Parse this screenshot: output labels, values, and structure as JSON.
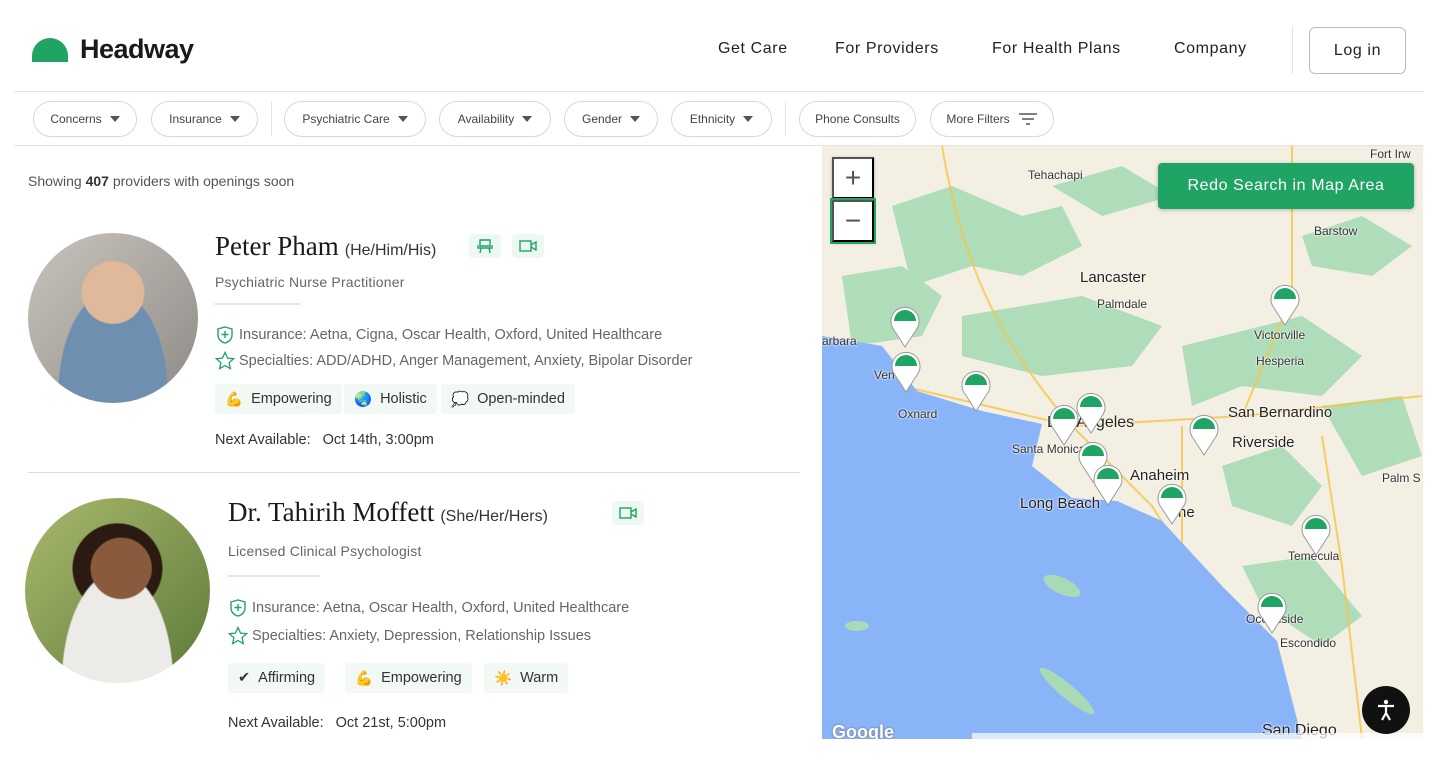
{
  "header": {
    "brand": "Headway",
    "nav": [
      "Get Care",
      "For Providers",
      "For Health Plans",
      "Company"
    ],
    "login": "Log in"
  },
  "filters": [
    "Concerns",
    "Insurance",
    "Psychiatric Care",
    "Availability",
    "Gender",
    "Ethnicity",
    "Phone Consults",
    "More Filters"
  ],
  "results": {
    "prefix": "Showing ",
    "count": "407",
    "suffix": " providers with openings soon"
  },
  "providers": [
    {
      "name": "Peter Pham",
      "pronouns": "(He/Him/His)",
      "modes": [
        "in-person-chair-icon",
        "video-icon"
      ],
      "role": "Psychiatric Nurse Practitioner",
      "insurance": "Insurance: Aetna, Cigna, Oscar Health, Oxford, United Healthcare",
      "specialties": "Specialties: ADD/ADHD, Anger Management, Anxiety, Bipolar Disorder",
      "tags": [
        {
          "emoji": "💪",
          "label": "Empowering"
        },
        {
          "emoji": "🌏",
          "label": "Holistic"
        },
        {
          "emoji": "💭",
          "label": "Open-minded"
        }
      ],
      "next_label": "Next Available:",
      "next_value": "Oct 14th, 3:00pm"
    },
    {
      "name": "Dr. Tahirih Moffett",
      "pronouns": "(She/Her/Hers)",
      "modes": [
        "video-icon"
      ],
      "role": "Licensed Clinical Psychologist",
      "insurance": "Insurance: Aetna, Oscar Health, Oxford, United Healthcare",
      "specialties": "Specialties: Anxiety, Depression, Relationship Issues",
      "tags": [
        {
          "emoji": "✔",
          "label": "Affirming"
        },
        {
          "emoji": "💪",
          "label": "Empowering"
        },
        {
          "emoji": "☀️",
          "label": "Warm"
        }
      ],
      "next_label": "Next Available:",
      "next_value": "Oct 21st, 5:00pm"
    }
  ],
  "map": {
    "zoom_in": "+",
    "zoom_out": "−",
    "redo": "Redo Search in Map Area",
    "labels": {
      "tehachapi": "Tehachapi",
      "barstow": "Barstow",
      "lancaster": "Lancaster",
      "palmdale": "Palmdale",
      "victorville": "Victorville",
      "hesperia": "Hesperia",
      "barbara": "arbara",
      "ventura": "Ven",
      "oxnard": "Oxnard",
      "la": "Los Angeles",
      "santamonica": "Santa Monica",
      "sanbernardino": "San Bernardino",
      "riverside": "Riverside",
      "anaheim": "Anaheim",
      "longbeach": "Long Beach",
      "irvine": "ne",
      "temecula": "Temecula",
      "oceanside": "Oceanside",
      "escondido": "Escondido",
      "sandiego": "San Diego",
      "palms": "Palm S",
      "fortirwin": "Fort Irw"
    },
    "google": "Google",
    "colors": {
      "water": "#8ab4f8",
      "land": "#f3efe3",
      "park": "#a8dab5",
      "pin": "#1fa463"
    }
  }
}
